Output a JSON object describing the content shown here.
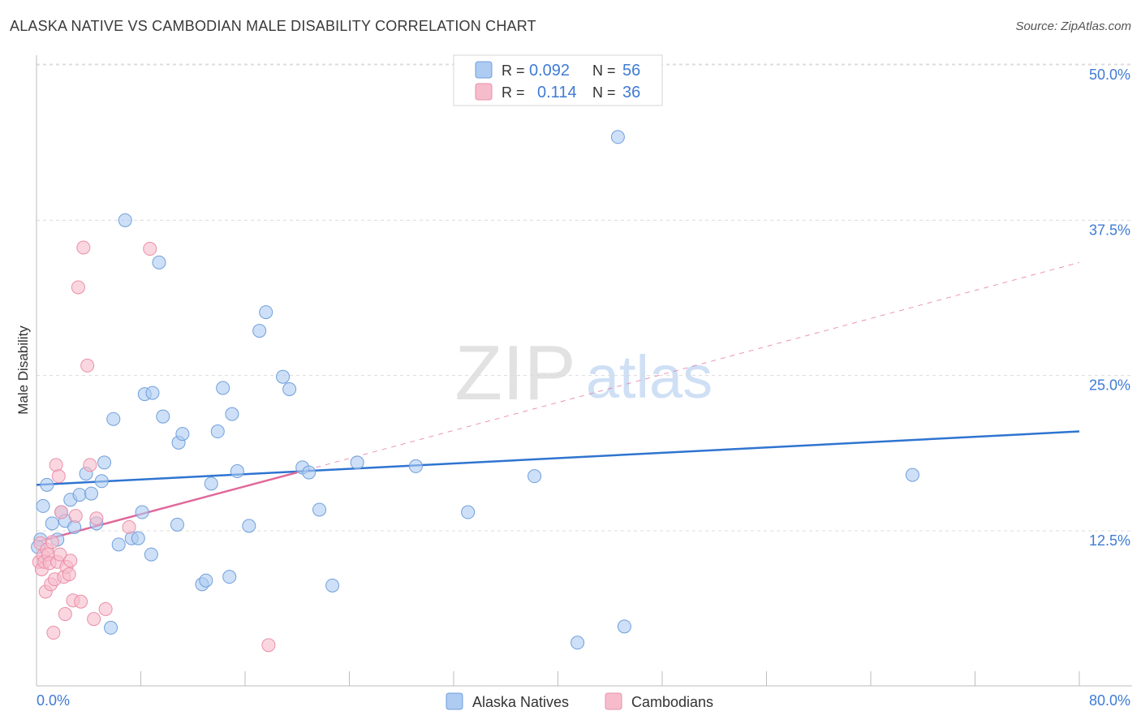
{
  "header": {
    "title": "ALASKA NATIVE VS CAMBODIAN MALE DISABILITY CORRELATION CHART",
    "source": "Source: ZipAtlas.com"
  },
  "watermark": {
    "zip": "ZIP",
    "atlas": "atlas"
  },
  "colors": {
    "blue_fill": "#aecbf2",
    "blue_stroke": "#6f9fdc",
    "blue_line": "#2f74d0",
    "pink_fill": "#f7bccb",
    "pink_stroke": "#ea8fa9",
    "pink_line": "#e0689a",
    "tick_label": "#3f7bd4",
    "grid": "#dcdcdc"
  },
  "stats": {
    "rows": [
      {
        "r_label": "R =",
        "r_value": "0.092",
        "n_label": "N =",
        "n_value": "56"
      },
      {
        "r_label": "R =",
        "r_value": "0.114",
        "n_label": "N =",
        "n_value": "36"
      }
    ]
  },
  "chart_data": {
    "type": "scatter",
    "title": "ALASKA NATIVE VS CAMBODIAN MALE DISABILITY CORRELATION CHART",
    "xlabel": "",
    "ylabel": "Male Disability",
    "xlim": [
      0,
      80
    ],
    "ylim": [
      0,
      52.5
    ],
    "y_ticks": [
      12.5,
      25.0,
      37.5,
      50.0
    ],
    "y_tick_labels": [
      "12.5%",
      "25.0%",
      "37.5%",
      "50.0%"
    ],
    "x_tick_labels": [
      "0.0%",
      "80.0%"
    ],
    "x_minor_ticks": [
      0,
      8,
      16,
      24,
      32,
      40,
      48,
      56,
      64,
      72,
      80
    ],
    "grid": "horizontal dashed",
    "legend_position": "bottom-center",
    "series": [
      {
        "name": "Alaska Natives",
        "r": 0.092,
        "n": 56,
        "trend": {
          "x": [
            0,
            80
          ],
          "y": [
            16.2,
            20.5
          ],
          "style": "solid"
        },
        "points": [
          [
            0.3,
            11.8
          ],
          [
            0.5,
            14.5
          ],
          [
            0.8,
            16.2
          ],
          [
            1.2,
            13.1
          ],
          [
            1.6,
            11.8
          ],
          [
            1.9,
            14.0
          ],
          [
            2.2,
            13.3
          ],
          [
            2.6,
            15.0
          ],
          [
            2.9,
            12.8
          ],
          [
            3.3,
            15.4
          ],
          [
            3.8,
            17.1
          ],
          [
            4.2,
            15.5
          ],
          [
            4.6,
            13.1
          ],
          [
            5.0,
            16.5
          ],
          [
            5.2,
            18.0
          ],
          [
            5.7,
            4.7
          ],
          [
            5.9,
            21.5
          ],
          [
            6.3,
            11.4
          ],
          [
            6.8,
            37.5
          ],
          [
            7.3,
            11.9
          ],
          [
            7.8,
            11.9
          ],
          [
            8.1,
            14.0
          ],
          [
            8.3,
            23.5
          ],
          [
            8.8,
            10.6
          ],
          [
            8.9,
            23.6
          ],
          [
            9.4,
            34.1
          ],
          [
            9.7,
            21.7
          ],
          [
            10.8,
            13.0
          ],
          [
            10.9,
            19.6
          ],
          [
            11.2,
            20.3
          ],
          [
            12.7,
            8.2
          ],
          [
            13.0,
            8.5
          ],
          [
            13.4,
            16.3
          ],
          [
            13.9,
            20.5
          ],
          [
            14.3,
            24.0
          ],
          [
            14.8,
            8.8
          ],
          [
            15.0,
            21.9
          ],
          [
            15.4,
            17.3
          ],
          [
            16.3,
            12.9
          ],
          [
            17.1,
            28.6
          ],
          [
            17.6,
            30.1
          ],
          [
            18.9,
            24.9
          ],
          [
            19.4,
            23.9
          ],
          [
            20.4,
            17.6
          ],
          [
            20.9,
            17.2
          ],
          [
            21.7,
            14.2
          ],
          [
            22.7,
            8.1
          ],
          [
            24.6,
            18.0
          ],
          [
            29.1,
            17.7
          ],
          [
            33.1,
            14.0
          ],
          [
            38.2,
            16.9
          ],
          [
            41.5,
            3.5
          ],
          [
            44.6,
            44.2
          ],
          [
            45.1,
            4.8
          ],
          [
            67.2,
            17.0
          ],
          [
            0.1,
            11.2
          ]
        ]
      },
      {
        "name": "Cambodians",
        "r": 0.114,
        "n": 36,
        "trend": {
          "x": [
            0,
            20
          ],
          "y": [
            11.6,
            17.2
          ],
          "style": "solid",
          "extended_x": [
            20,
            80
          ],
          "extended_y": [
            17.2,
            34.1
          ],
          "extended_style": "dashed"
        },
        "points": [
          [
            0.2,
            10.0
          ],
          [
            0.3,
            11.5
          ],
          [
            0.4,
            9.4
          ],
          [
            0.5,
            10.5
          ],
          [
            0.6,
            10.0
          ],
          [
            0.7,
            7.6
          ],
          [
            0.8,
            11.0
          ],
          [
            0.9,
            10.6
          ],
          [
            1.0,
            9.9
          ],
          [
            1.1,
            8.2
          ],
          [
            1.2,
            11.6
          ],
          [
            1.3,
            4.3
          ],
          [
            1.4,
            8.6
          ],
          [
            1.5,
            17.8
          ],
          [
            1.6,
            10.0
          ],
          [
            1.7,
            16.9
          ],
          [
            1.8,
            10.6
          ],
          [
            1.9,
            14.0
          ],
          [
            2.1,
            8.8
          ],
          [
            2.2,
            5.8
          ],
          [
            2.3,
            9.6
          ],
          [
            2.5,
            9.0
          ],
          [
            2.6,
            10.1
          ],
          [
            2.8,
            6.9
          ],
          [
            3.0,
            13.7
          ],
          [
            3.2,
            32.1
          ],
          [
            3.4,
            6.8
          ],
          [
            3.6,
            35.3
          ],
          [
            3.9,
            25.8
          ],
          [
            4.1,
            17.8
          ],
          [
            4.4,
            5.4
          ],
          [
            4.6,
            13.5
          ],
          [
            5.3,
            6.2
          ],
          [
            7.1,
            12.8
          ],
          [
            8.7,
            35.2
          ],
          [
            17.8,
            3.3
          ]
        ]
      }
    ]
  },
  "legend": {
    "items": [
      {
        "label": "Alaska Natives"
      },
      {
        "label": "Cambodians"
      }
    ]
  }
}
